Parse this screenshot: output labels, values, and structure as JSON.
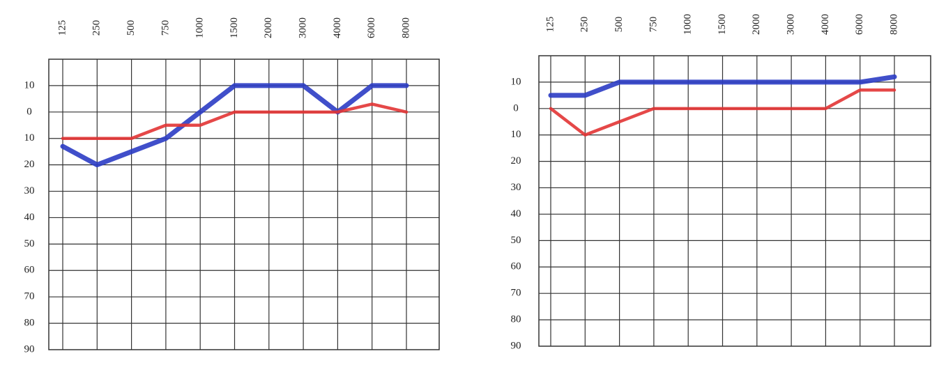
{
  "chart_data": [
    {
      "type": "line",
      "categories": [
        "125",
        "250",
        "500",
        "750",
        "1000",
        "1500",
        "2000",
        "3000",
        "4000",
        "6000",
        "8000"
      ],
      "series": [
        {
          "color": "#2b3cc4",
          "values": [
            13,
            20,
            15,
            10,
            0,
            -10,
            -10,
            -10,
            0,
            -10,
            -10
          ]
        },
        {
          "color": "#e23434",
          "values": [
            10,
            10,
            10,
            5,
            5,
            0,
            0,
            0,
            0,
            -3,
            0
          ]
        }
      ],
      "ylim": [
        -20,
        90
      ],
      "inverted": true,
      "yticks": [
        {
          "value": -10,
          "label": "10"
        },
        0,
        10,
        20,
        30,
        40,
        50,
        60,
        70,
        80,
        90
      ],
      "grid": true
    },
    {
      "type": "line",
      "categories": [
        "125",
        "250",
        "500",
        "750",
        "1000",
        "1500",
        "2000",
        "3000",
        "4000",
        "6000",
        "8000"
      ],
      "series": [
        {
          "color": "#2b3cc4",
          "values": [
            -5,
            -5,
            -10,
            -10,
            -10,
            -10,
            -10,
            -10,
            -10,
            -10,
            -12
          ]
        },
        {
          "color": "#e23434",
          "values": [
            0,
            10,
            5,
            0,
            0,
            0,
            0,
            0,
            0,
            -7,
            -7
          ]
        }
      ],
      "ylim": [
        -20,
        90
      ],
      "inverted": true,
      "yticks": [
        {
          "value": -10,
          "label": "10"
        },
        0,
        10,
        20,
        30,
        40,
        50,
        60,
        70,
        80,
        90
      ],
      "grid": true
    }
  ]
}
